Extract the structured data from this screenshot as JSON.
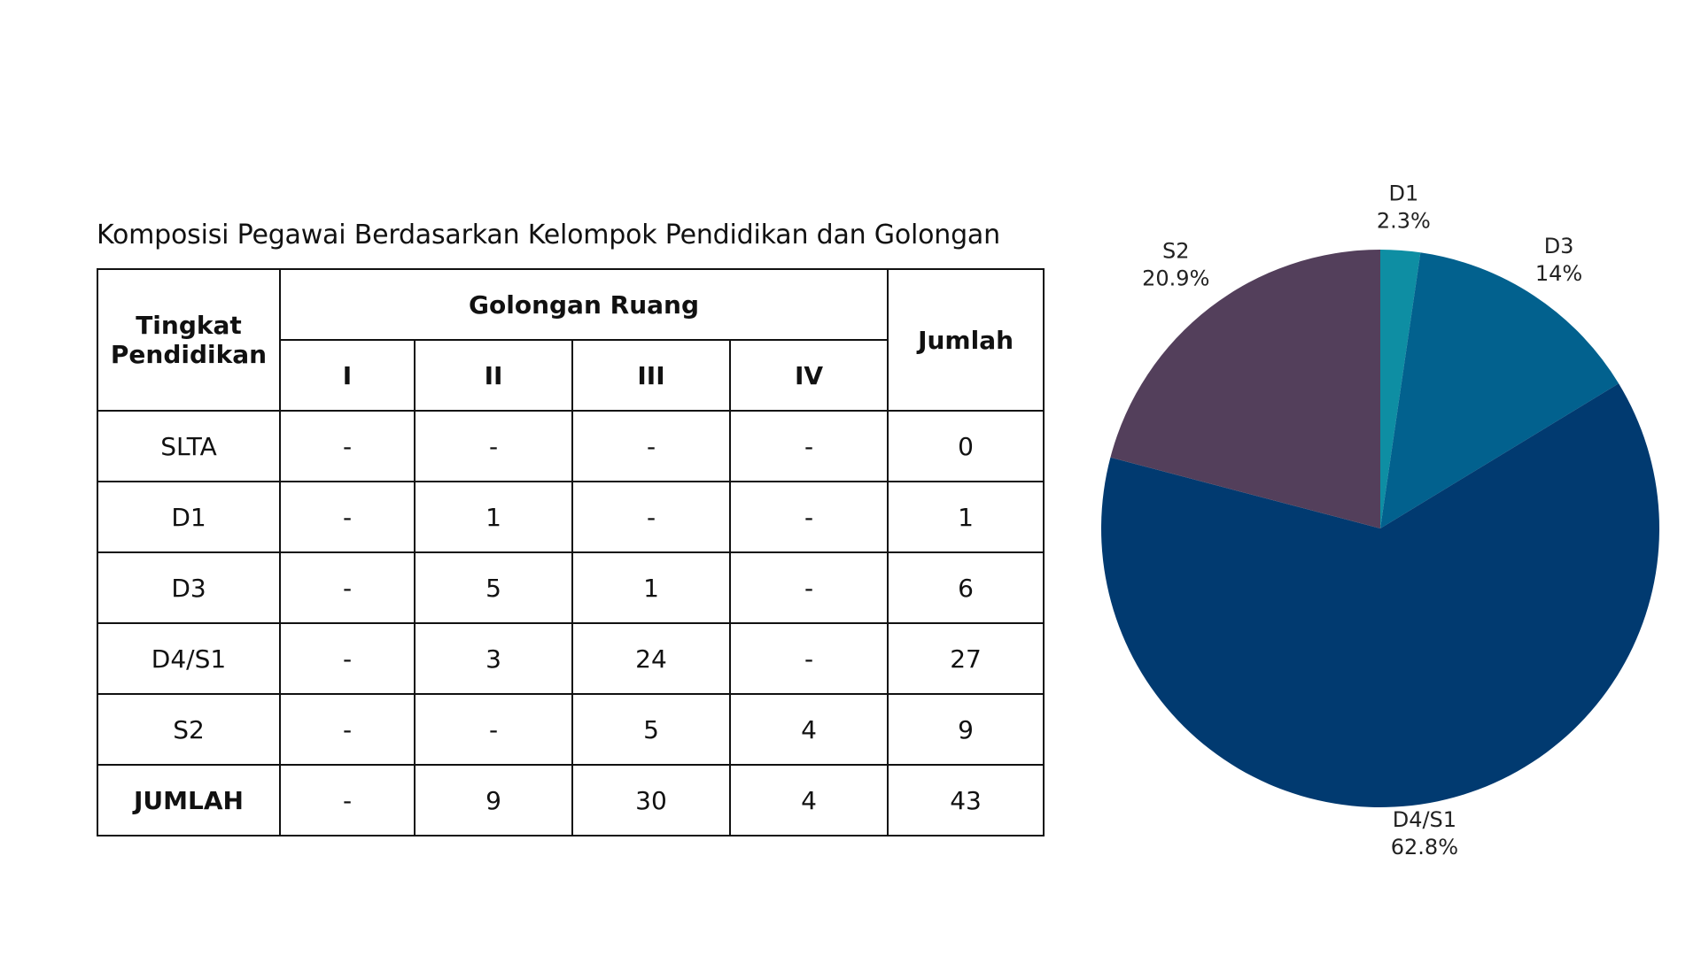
{
  "table": {
    "title": "Komposisi Pegawai Berdasarkan Kelompok Pendidikan dan Golongan",
    "header": {
      "level": "Tingkat Pendidikan",
      "group": "Golongan Ruang",
      "total": "Jumlah",
      "columns": [
        "I",
        "II",
        "III",
        "IV"
      ]
    },
    "rows": [
      {
        "label": "SLTA",
        "cells": [
          "-",
          "-",
          "-",
          "-"
        ],
        "total": "0"
      },
      {
        "label": "D1",
        "cells": [
          "-",
          "1",
          "-",
          "-"
        ],
        "total": "1"
      },
      {
        "label": "D3",
        "cells": [
          "-",
          "5",
          "1",
          "-"
        ],
        "total": "6"
      },
      {
        "label": "D4/S1",
        "cells": [
          "-",
          "3",
          "24",
          "-"
        ],
        "total": "27"
      },
      {
        "label": "S2",
        "cells": [
          "-",
          "-",
          "5",
          "4"
        ],
        "total": "9"
      },
      {
        "label": "JUMLAH",
        "cells": [
          "-",
          "9",
          "30",
          "4"
        ],
        "total": "43"
      }
    ]
  },
  "chart_data": {
    "type": "pie",
    "title": "",
    "slices": [
      {
        "label": "D1",
        "value": 2.3,
        "display": "2.3%",
        "color": "#0e8ea3"
      },
      {
        "label": "D3",
        "value": 14.0,
        "display": "14%",
        "color": "#02618e"
      },
      {
        "label": "D4/S1",
        "value": 62.8,
        "display": "62.8%",
        "color": "#013a70"
      },
      {
        "label": "S2",
        "value": 20.9,
        "display": "20.9%",
        "color": "#533f5b"
      }
    ],
    "start_angle_deg": 0,
    "direction": "clockwise",
    "legend": "none"
  }
}
